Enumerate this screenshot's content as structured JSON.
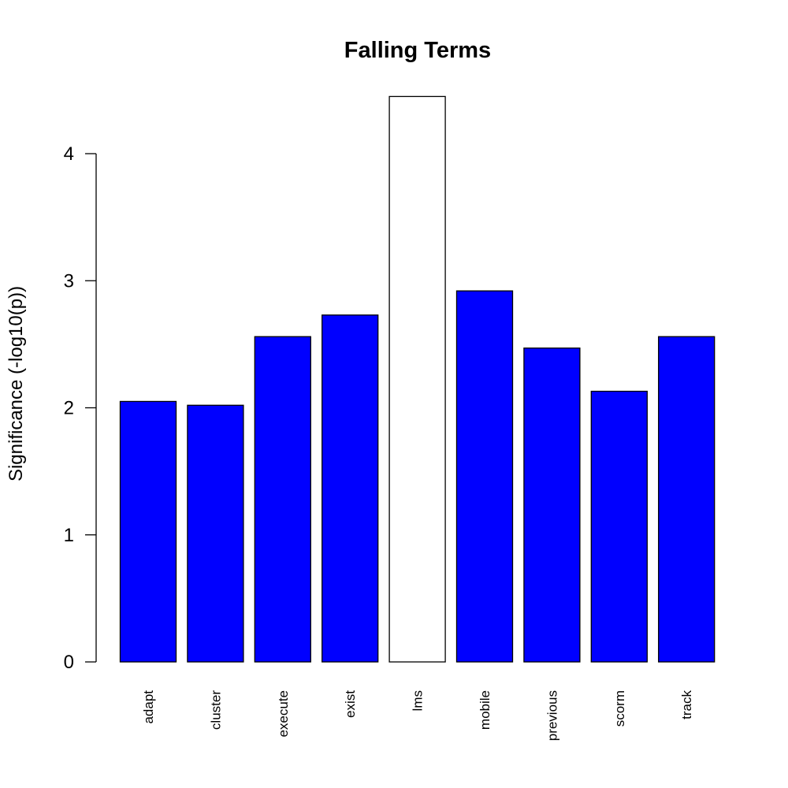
{
  "chart_data": {
    "type": "bar",
    "title": "Falling Terms",
    "xlabel": "",
    "ylabel": "Significance (-log10(p))",
    "ylim": [
      0,
      4.45
    ],
    "yticks": [
      "0",
      "1",
      "2",
      "3",
      "4"
    ],
    "categories": [
      "adapt",
      "cluster",
      "execute",
      "exist",
      "lms",
      "mobile",
      "previous",
      "scorm",
      "track"
    ],
    "values": [
      2.05,
      2.02,
      2.56,
      2.73,
      4.45,
      2.92,
      2.47,
      2.13,
      2.56
    ],
    "colors": [
      "#0000ff",
      "#0000ff",
      "#0000ff",
      "#0000ff",
      "#ffffff",
      "#0000ff",
      "#0000ff",
      "#0000ff",
      "#0000ff"
    ],
    "grid": false,
    "legend": "none"
  }
}
